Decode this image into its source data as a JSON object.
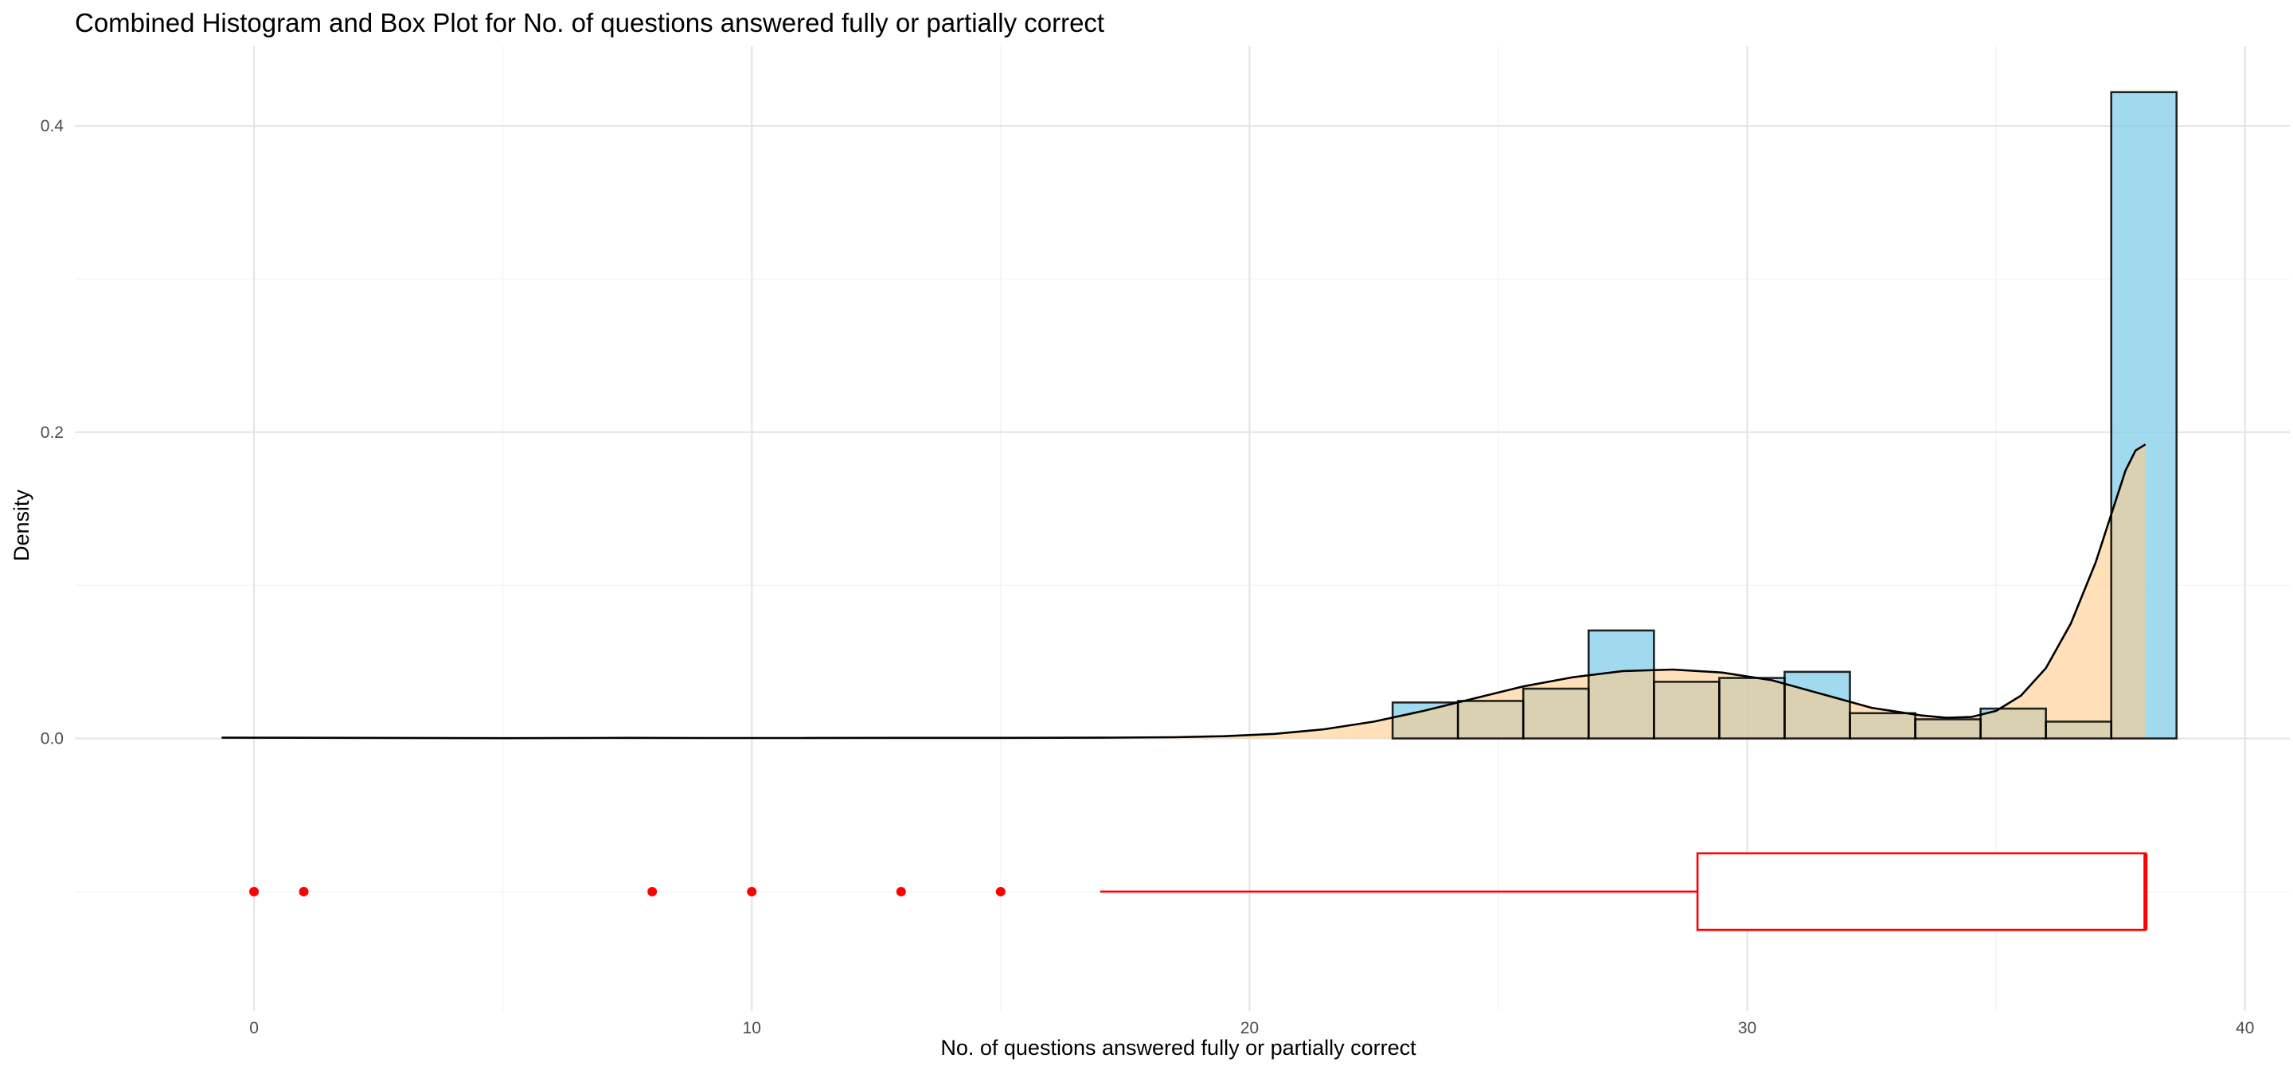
{
  "chart_data": {
    "type": "histogram",
    "title": "Combined Histogram and Box Plot for No. of questions answered fully or partially correct",
    "xlabel": "No. of questions answered fully or partially correct",
    "ylabel": "Density",
    "xlim": [
      -3.6,
      40.9
    ],
    "ylim": [
      -0.178,
      0.452
    ],
    "x_ticks": [
      0,
      10,
      20,
      30,
      40
    ],
    "x_tick_labels": [
      "0",
      "10",
      "20",
      "30",
      "40"
    ],
    "y_ticks": [
      0.0,
      0.2,
      0.4
    ],
    "y_tick_labels": [
      "0.0",
      "0.2",
      "0.4"
    ],
    "grid": true,
    "colors": {
      "histogram_fill": "#87CEEB",
      "density_fill": "#FFCC88",
      "boxplot": "#FF0000",
      "grid_major": "#E5E5E5",
      "grid_minor": "#F2F2F2"
    },
    "histogram": {
      "bin_width": 1.3125,
      "bins": [
        {
          "xmin": 22.875,
          "xmax": 24.1875,
          "density": 0.0235
        },
        {
          "xmin": 24.1875,
          "xmax": 25.5,
          "density": 0.0245
        },
        {
          "xmin": 25.5,
          "xmax": 26.8125,
          "density": 0.0325
        },
        {
          "xmin": 26.8125,
          "xmax": 28.125,
          "density": 0.0705
        },
        {
          "xmin": 28.125,
          "xmax": 29.4375,
          "density": 0.037
        },
        {
          "xmin": 29.4375,
          "xmax": 30.75,
          "density": 0.0395
        },
        {
          "xmin": 30.75,
          "xmax": 32.0625,
          "density": 0.0435
        },
        {
          "xmin": 32.0625,
          "xmax": 33.375,
          "density": 0.0165
        },
        {
          "xmin": 33.375,
          "xmax": 34.6875,
          "density": 0.0125
        },
        {
          "xmin": 34.6875,
          "xmax": 36.0,
          "density": 0.0195
        },
        {
          "xmin": 36.0,
          "xmax": 37.3125,
          "density": 0.011
        },
        {
          "xmin": 37.3125,
          "xmax": 38.625,
          "density": 0.422
        }
      ]
    },
    "density_curve": {
      "x": [
        -0.65,
        2,
        5,
        7.5,
        9,
        11,
        13,
        15,
        17,
        18.5,
        19.5,
        20.5,
        21.5,
        22.5,
        23.5,
        24.5,
        25.5,
        26.5,
        27.5,
        28.5,
        29.5,
        30.5,
        31.5,
        32.5,
        33.5,
        34,
        34.5,
        35,
        35.5,
        36,
        36.5,
        37,
        37.3,
        37.6,
        37.8,
        38.0
      ],
      "y": [
        0.0005,
        0.0004,
        0.0002,
        0.0004,
        0.0003,
        0.0003,
        0.0004,
        0.0004,
        0.0005,
        0.0008,
        0.0015,
        0.003,
        0.006,
        0.011,
        0.018,
        0.026,
        0.034,
        0.04,
        0.044,
        0.045,
        0.043,
        0.038,
        0.029,
        0.02,
        0.015,
        0.0135,
        0.014,
        0.018,
        0.028,
        0.046,
        0.075,
        0.115,
        0.145,
        0.175,
        0.188,
        0.192
      ]
    },
    "boxplot": {
      "y_position": -0.1,
      "whisker_min": 17,
      "q1": 29,
      "median": 38,
      "q3": 38,
      "max": 38,
      "box_bottom": -0.075,
      "box_top": -0.125,
      "outliers": [
        0,
        1,
        8,
        10,
        13,
        15
      ]
    }
  }
}
